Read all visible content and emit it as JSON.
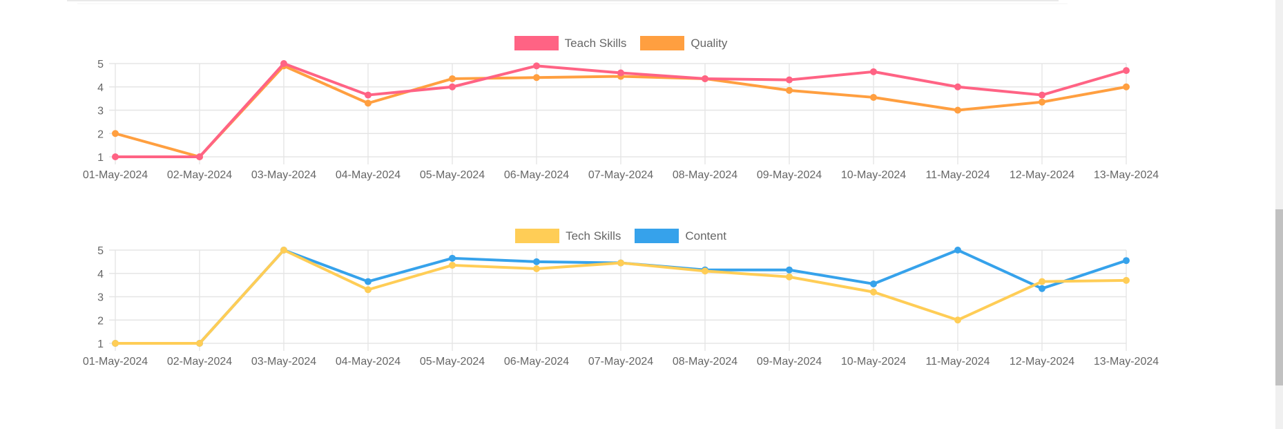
{
  "page": {
    "background": "#ffffff"
  },
  "chart_data": [
    {
      "type": "line",
      "title": "",
      "x": [
        "01-May-2024",
        "02-May-2024",
        "03-May-2024",
        "04-May-2024",
        "05-May-2024",
        "06-May-2024",
        "07-May-2024",
        "08-May-2024",
        "09-May-2024",
        "10-May-2024",
        "11-May-2024",
        "12-May-2024",
        "13-May-2024"
      ],
      "series": [
        {
          "name": "Teach Skills",
          "color": "#FF6384",
          "values": [
            1,
            1,
            5,
            3.65,
            4,
            4.9,
            4.6,
            4.35,
            4.3,
            4.65,
            4,
            3.65,
            4.7
          ]
        },
        {
          "name": "Quality",
          "color": "#FF9F40",
          "values": [
            2,
            1,
            4.9,
            3.3,
            4.35,
            4.4,
            4.45,
            4.35,
            3.85,
            3.55,
            3,
            3.35,
            4
          ]
        }
      ],
      "ylim": [
        1,
        5
      ],
      "yticks": [
        1,
        2,
        3,
        4,
        5
      ],
      "grid": true,
      "legend_position": "top-center",
      "grid_color": "#e5e5e5",
      "tick_color": "#666666"
    },
    {
      "type": "line",
      "title": "",
      "x": [
        "01-May-2024",
        "02-May-2024",
        "03-May-2024",
        "04-May-2024",
        "05-May-2024",
        "06-May-2024",
        "07-May-2024",
        "08-May-2024",
        "09-May-2024",
        "10-May-2024",
        "11-May-2024",
        "12-May-2024",
        "13-May-2024"
      ],
      "series": [
        {
          "name": "Tech Skills",
          "color": "#FFCD56",
          "values": [
            1,
            1,
            5,
            3.3,
            4.35,
            4.2,
            4.45,
            4.1,
            3.85,
            3.2,
            2,
            3.65,
            3.7
          ]
        },
        {
          "name": "Content",
          "color": "#36A2EB",
          "values": [
            1,
            1,
            5,
            3.65,
            4.65,
            4.5,
            4.45,
            4.15,
            4.15,
            3.55,
            5,
            3.35,
            4.55
          ]
        }
      ],
      "ylim": [
        1,
        5
      ],
      "yticks": [
        1,
        2,
        3,
        4,
        5
      ],
      "grid": true,
      "legend_position": "top-center",
      "grid_color": "#e5e5e5",
      "tick_color": "#666666"
    }
  ]
}
